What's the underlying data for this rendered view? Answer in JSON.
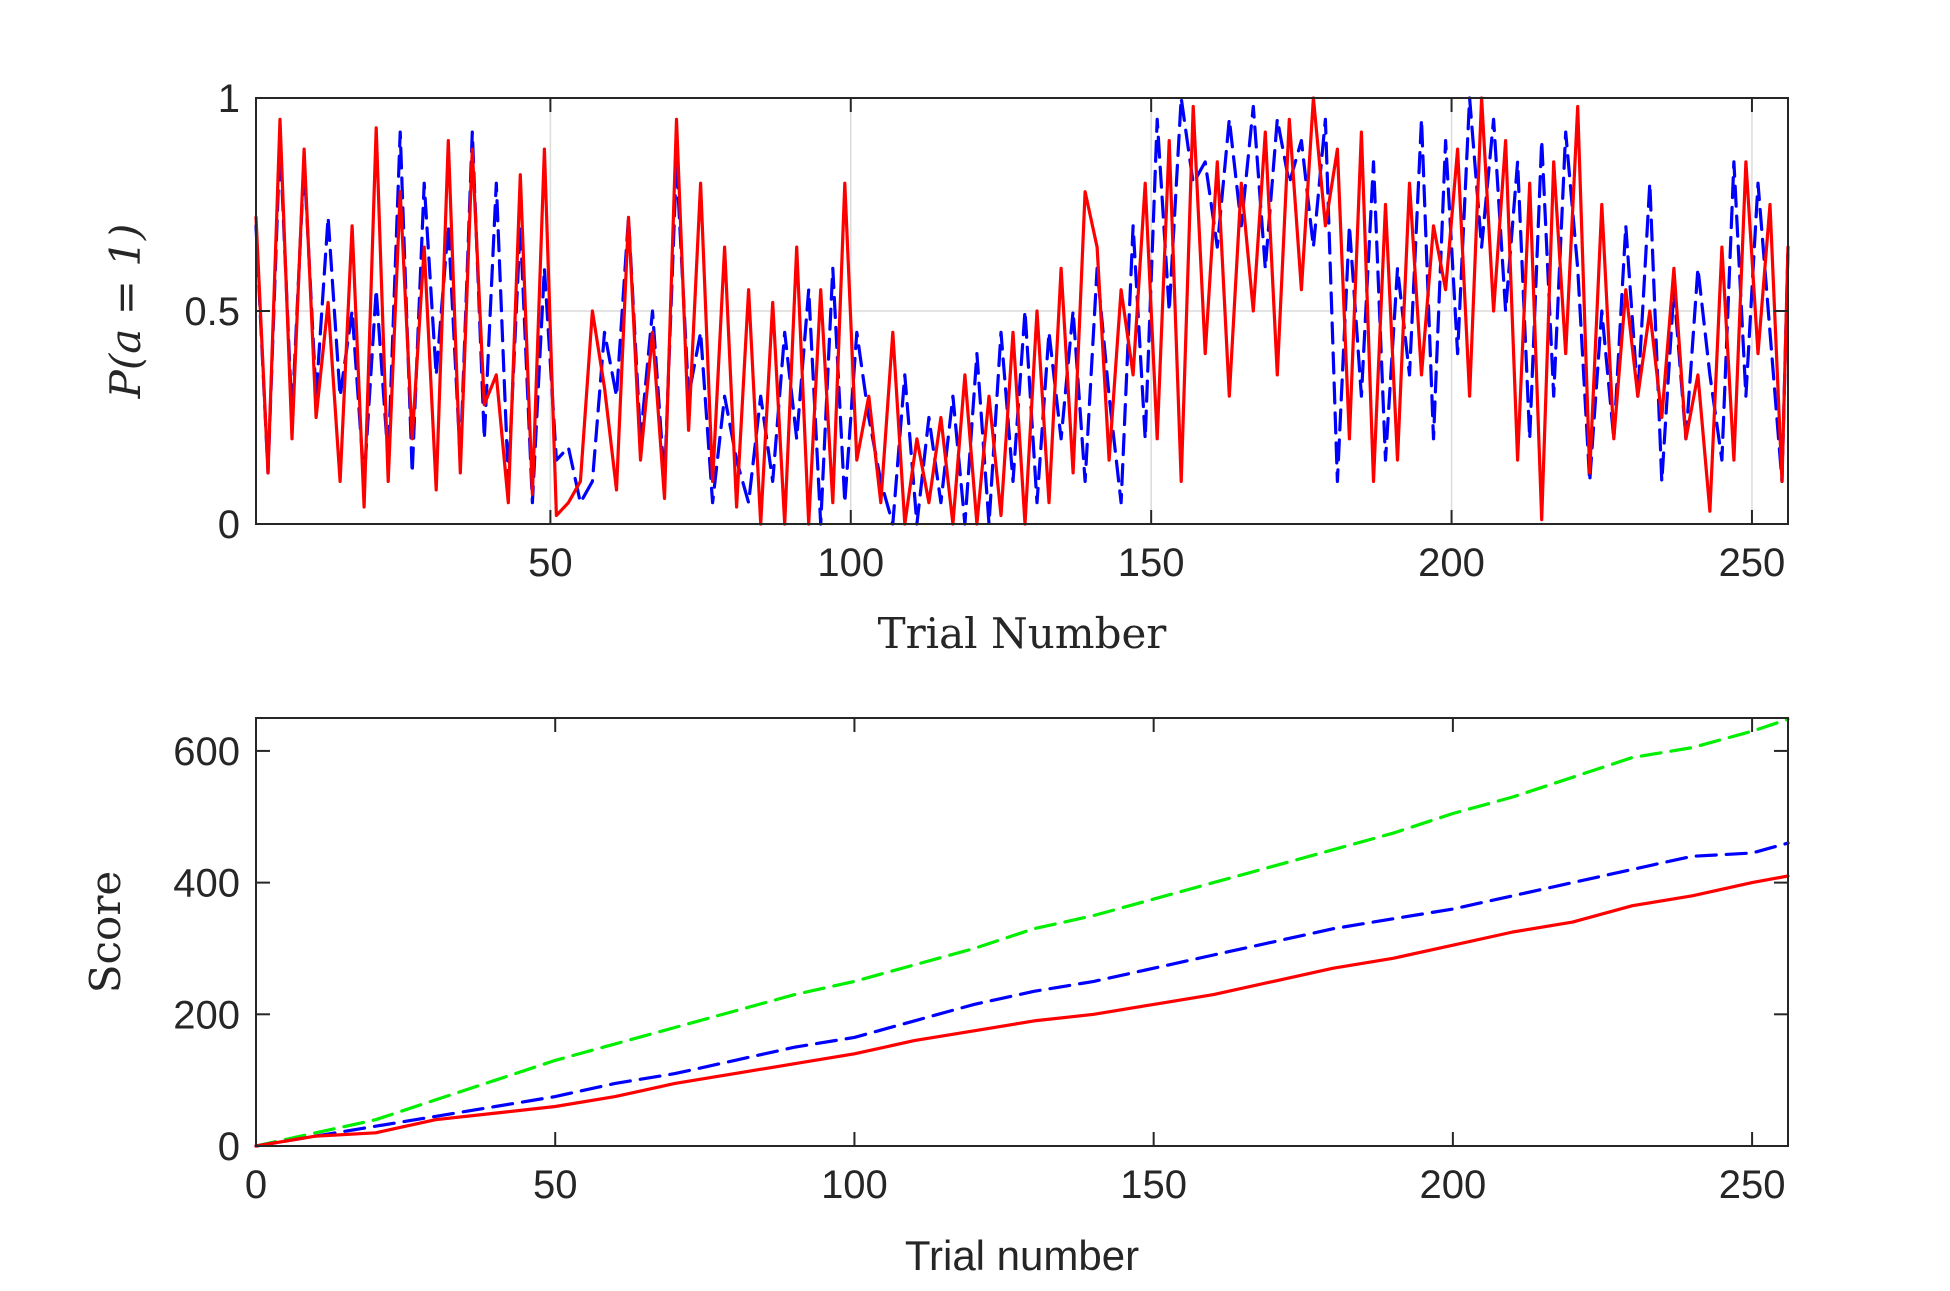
{
  "chart_data": [
    {
      "type": "line",
      "xlabel": "Trial Number",
      "ylabel": "P(a = 1)",
      "xlim": [
        1,
        256
      ],
      "ylim": [
        0,
        1
      ],
      "xticks": [
        50,
        100,
        150,
        200,
        250
      ],
      "yticks": [
        0,
        0.5,
        1
      ],
      "grid": true,
      "series": [
        {
          "color": "#0000ff",
          "style": "dashed",
          "x": [
            1,
            3,
            5,
            7,
            9,
            11,
            13,
            15,
            17,
            19,
            21,
            23,
            25,
            27,
            29,
            31,
            33,
            35,
            37,
            39,
            41,
            43,
            45,
            47,
            49,
            51,
            53,
            55,
            57,
            59,
            61,
            63,
            65,
            67,
            69,
            71,
            73,
            75,
            77,
            79,
            81,
            83,
            85,
            87,
            89,
            91,
            93,
            95,
            97,
            99,
            101,
            103,
            105,
            107,
            109,
            111,
            113,
            115,
            117,
            119,
            121,
            123,
            125,
            127,
            129,
            131,
            133,
            135,
            137,
            139,
            141,
            143,
            145,
            147,
            149,
            151,
            153,
            155,
            157,
            159,
            161,
            163,
            165,
            167,
            169,
            171,
            173,
            175,
            177,
            179,
            181,
            183,
            185,
            187,
            189,
            191,
            193,
            195,
            197,
            199,
            201,
            203,
            205,
            207,
            209,
            211,
            213,
            215,
            217,
            219,
            221,
            223,
            225,
            227,
            229,
            231,
            233,
            235,
            237,
            239,
            241,
            243,
            245,
            247,
            249,
            251,
            253,
            255,
            256
          ],
          "y": [
            0.7,
            0.12,
            0.9,
            0.25,
            0.85,
            0.3,
            0.72,
            0.3,
            0.5,
            0.1,
            0.55,
            0.15,
            0.92,
            0.12,
            0.8,
            0.35,
            0.7,
            0.15,
            0.92,
            0.2,
            0.8,
            0.1,
            0.7,
            0.05,
            0.6,
            0.15,
            0.18,
            0.05,
            0.1,
            0.45,
            0.3,
            0.72,
            0.2,
            0.5,
            0.1,
            0.85,
            0.3,
            0.45,
            0.05,
            0.3,
            0.15,
            0.05,
            0.3,
            0.1,
            0.45,
            0.2,
            0.55,
            0.0,
            0.6,
            0.05,
            0.45,
            0.25,
            0.1,
            0.0,
            0.35,
            0.0,
            0.25,
            0.05,
            0.3,
            0.0,
            0.4,
            0.0,
            0.45,
            0.1,
            0.5,
            0.05,
            0.45,
            0.2,
            0.5,
            0.1,
            0.6,
            0.3,
            0.05,
            0.7,
            0.2,
            0.95,
            0.5,
            1.0,
            0.8,
            0.85,
            0.65,
            0.95,
            0.7,
            0.98,
            0.6,
            0.95,
            0.8,
            0.9,
            0.65,
            0.95,
            0.1,
            0.7,
            0.3,
            0.85,
            0.15,
            0.6,
            0.35,
            0.95,
            0.2,
            0.9,
            0.4,
            1.0,
            0.65,
            0.95,
            0.5,
            0.85,
            0.2,
            0.9,
            0.3,
            0.92,
            0.6,
            0.1,
            0.5,
            0.2,
            0.7,
            0.3,
            0.8,
            0.1,
            0.55,
            0.2,
            0.6,
            0.35,
            0.15,
            0.85,
            0.3,
            0.8,
            0.45,
            0.1,
            0.65
          ],
          "name": ""
        },
        {
          "color": "#ff0000",
          "style": "solid",
          "x": [
            1,
            3,
            5,
            7,
            9,
            11,
            13,
            15,
            17,
            19,
            21,
            23,
            25,
            27,
            29,
            31,
            33,
            35,
            37,
            39,
            41,
            43,
            45,
            47,
            49,
            51,
            53,
            55,
            57,
            59,
            61,
            63,
            65,
            67,
            69,
            71,
            73,
            75,
            77,
            79,
            81,
            83,
            85,
            87,
            89,
            91,
            93,
            95,
            97,
            99,
            101,
            103,
            105,
            107,
            109,
            111,
            113,
            115,
            117,
            119,
            121,
            123,
            125,
            127,
            129,
            131,
            133,
            135,
            137,
            139,
            141,
            143,
            145,
            147,
            149,
            151,
            153,
            155,
            157,
            159,
            161,
            163,
            165,
            167,
            169,
            171,
            173,
            175,
            177,
            179,
            181,
            183,
            185,
            187,
            189,
            191,
            193,
            195,
            197,
            199,
            201,
            203,
            205,
            207,
            209,
            211,
            213,
            215,
            217,
            219,
            221,
            223,
            225,
            227,
            229,
            231,
            233,
            235,
            237,
            239,
            241,
            243,
            245,
            247,
            249,
            251,
            253,
            255,
            256
          ],
          "y": [
            0.72,
            0.12,
            0.95,
            0.2,
            0.88,
            0.25,
            0.52,
            0.1,
            0.7,
            0.04,
            0.93,
            0.1,
            0.78,
            0.2,
            0.65,
            0.08,
            0.9,
            0.12,
            0.88,
            0.28,
            0.35,
            0.05,
            0.82,
            0.07,
            0.88,
            0.02,
            0.05,
            0.1,
            0.5,
            0.32,
            0.08,
            0.72,
            0.15,
            0.45,
            0.06,
            0.95,
            0.22,
            0.8,
            0.1,
            0.65,
            0.04,
            0.55,
            0.0,
            0.52,
            0.0,
            0.65,
            0.0,
            0.55,
            0.05,
            0.8,
            0.15,
            0.3,
            0.05,
            0.45,
            0.0,
            0.2,
            0.05,
            0.25,
            0.0,
            0.35,
            0.0,
            0.3,
            0.02,
            0.45,
            0.0,
            0.5,
            0.05,
            0.6,
            0.12,
            0.78,
            0.65,
            0.15,
            0.55,
            0.35,
            0.8,
            0.2,
            0.9,
            0.1,
            0.98,
            0.4,
            0.85,
            0.3,
            0.8,
            0.5,
            0.92,
            0.35,
            0.95,
            0.55,
            1.0,
            0.7,
            0.88,
            0.2,
            0.92,
            0.1,
            0.75,
            0.15,
            0.8,
            0.35,
            0.7,
            0.55,
            0.88,
            0.3,
            1.0,
            0.5,
            0.9,
            0.15,
            0.8,
            0.01,
            0.85,
            0.4,
            0.98,
            0.12,
            0.75,
            0.2,
            0.55,
            0.3,
            0.5,
            0.25,
            0.6,
            0.2,
            0.35,
            0.03,
            0.65,
            0.15,
            0.85,
            0.4,
            0.75,
            0.1,
            0.65
          ],
          "name": ""
        }
      ]
    },
    {
      "type": "line",
      "xlabel": "Trial number",
      "ylabel": "Score",
      "xlim": [
        0,
        256
      ],
      "ylim": [
        0,
        650
      ],
      "xticks": [
        0,
        50,
        100,
        150,
        200,
        250
      ],
      "yticks": [
        0,
        200,
        400,
        600
      ],
      "grid": false,
      "series": [
        {
          "color": "#00ee00",
          "style": "dashed",
          "x": [
            0,
            10,
            20,
            30,
            40,
            50,
            60,
            70,
            80,
            90,
            100,
            110,
            120,
            130,
            140,
            150,
            160,
            170,
            180,
            190,
            200,
            210,
            220,
            230,
            240,
            250,
            256
          ],
          "y": [
            0,
            20,
            40,
            70,
            100,
            130,
            155,
            180,
            205,
            230,
            250,
            275,
            300,
            330,
            350,
            375,
            400,
            425,
            450,
            475,
            505,
            530,
            560,
            590,
            605,
            630,
            648
          ],
          "name": ""
        },
        {
          "color": "#0000ff",
          "style": "dashed",
          "x": [
            0,
            10,
            20,
            30,
            40,
            50,
            60,
            70,
            80,
            90,
            100,
            110,
            120,
            130,
            140,
            150,
            160,
            170,
            180,
            190,
            200,
            210,
            220,
            230,
            240,
            250,
            256
          ],
          "y": [
            0,
            15,
            30,
            45,
            60,
            75,
            95,
            110,
            130,
            150,
            165,
            190,
            215,
            235,
            250,
            270,
            290,
            310,
            330,
            345,
            360,
            380,
            400,
            420,
            440,
            445,
            460
          ],
          "name": ""
        },
        {
          "color": "#ff0000",
          "style": "solid",
          "x": [
            0,
            10,
            20,
            30,
            40,
            50,
            60,
            70,
            80,
            90,
            100,
            110,
            120,
            130,
            140,
            150,
            160,
            170,
            180,
            190,
            200,
            210,
            220,
            230,
            240,
            250,
            256
          ],
          "y": [
            0,
            15,
            20,
            40,
            50,
            60,
            75,
            95,
            110,
            125,
            140,
            160,
            175,
            190,
            200,
            215,
            230,
            250,
            270,
            285,
            305,
            325,
            340,
            365,
            380,
            400,
            410
          ],
          "name": ""
        }
      ]
    }
  ]
}
